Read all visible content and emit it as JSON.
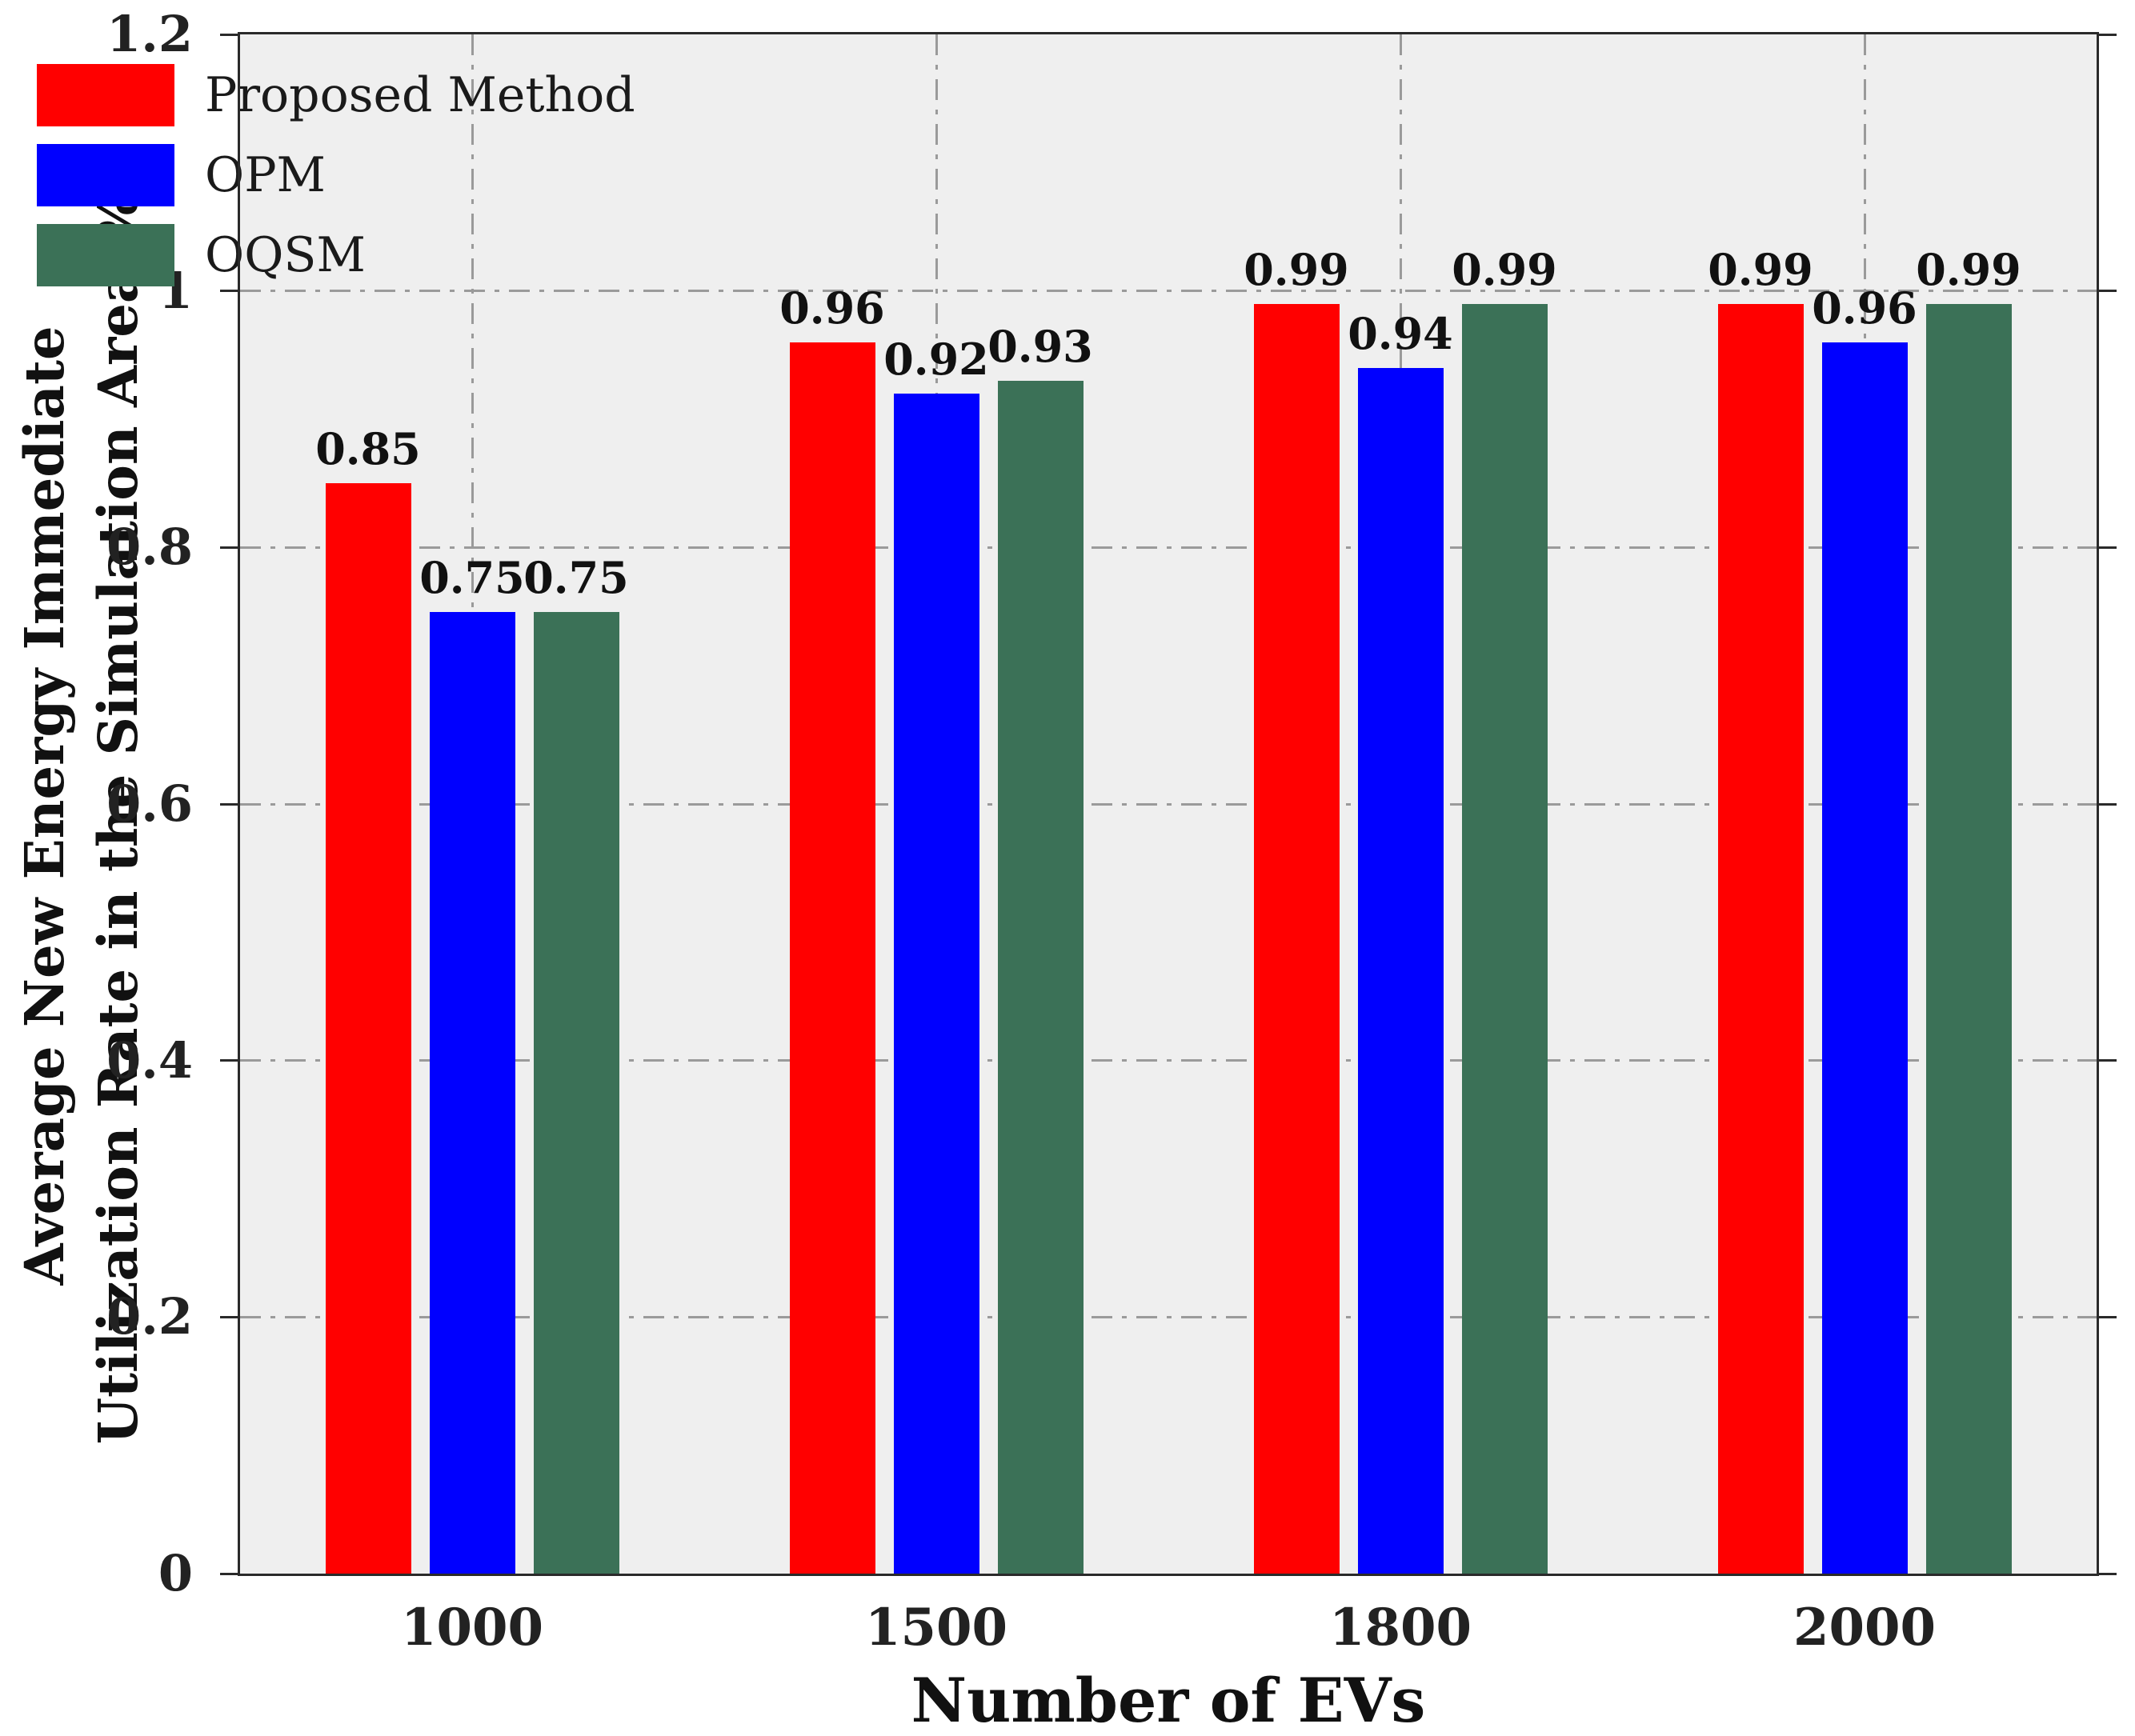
{
  "chart_data": {
    "type": "bar",
    "title": "",
    "xlabel": "Number of EVs",
    "ylabel_line1": "Average New Energy Immediate",
    "ylabel_line2": "Utilization Rate in the Simulation Area(%)",
    "categories": [
      "1000",
      "1500",
      "1800",
      "2000"
    ],
    "series": [
      {
        "name": "Proposed Method",
        "color": "#FF0000",
        "values": [
          0.85,
          0.96,
          0.99,
          0.99
        ]
      },
      {
        "name": "OPM",
        "color": "#0000FF",
        "values": [
          0.75,
          0.92,
          0.94,
          0.96
        ]
      },
      {
        "name": "OQSM",
        "color": "#3B7157",
        "values": [
          0.75,
          0.93,
          0.99,
          0.99
        ]
      }
    ],
    "value_labels": [
      "0.85",
      "0.75",
      "0.75",
      "0.96",
      "0.92",
      "0.93",
      "0.99",
      "0.94",
      "0.99",
      "0.99",
      "0.96",
      "0.99"
    ],
    "ylim": [
      0,
      1.2
    ],
    "yticks": [
      0,
      0.2,
      0.4,
      0.6,
      0.8,
      1,
      1.2
    ],
    "ytick_labels": [
      "0",
      "0.2",
      "0.4",
      "0.6",
      "0.8",
      "1",
      "1.2"
    ],
    "grid": "dash-dot horizontal at yticks, dash-dot vertical at category centers",
    "legend_position": "top-left",
    "legend_frame": false
  },
  "style": {
    "page_bg": "#FFFFFF",
    "plot_bg": "#EFEFEF",
    "grid_color": "#9A9A9A",
    "axis_color": "#2A2A2A",
    "text_color": "#111111"
  }
}
